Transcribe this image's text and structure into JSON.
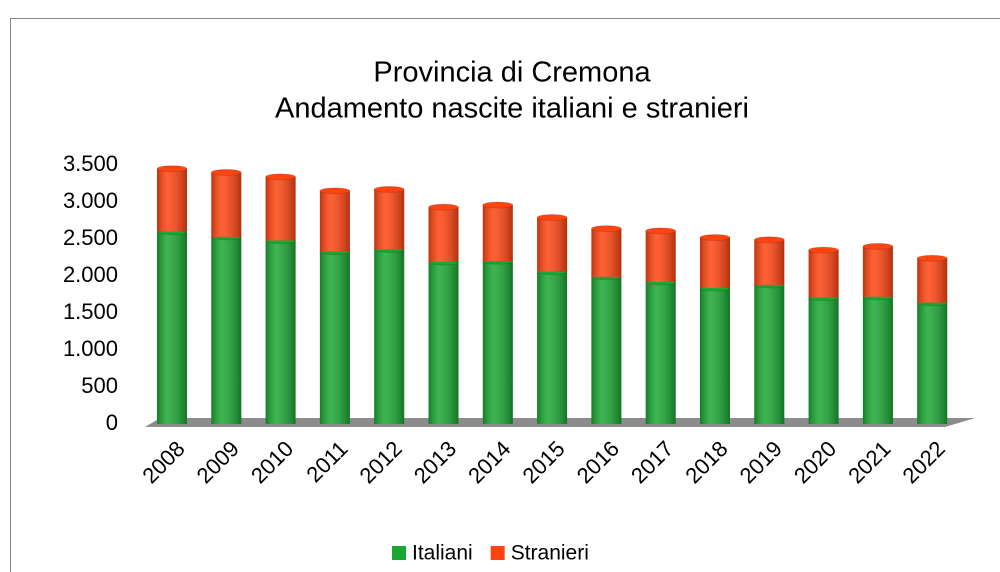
{
  "chart_data": {
    "type": "stacked_bar",
    "title": [
      "Provincia di Cremona",
      "Andamento nascite italiani e stranieri"
    ],
    "categories": [
      "2008",
      "2009",
      "2010",
      "2011",
      "2012",
      "2013",
      "2014",
      "2015",
      "2016",
      "2017",
      "2018",
      "2019",
      "2020",
      "2021",
      "2022"
    ],
    "series": [
      {
        "name": "Italiani",
        "color": "#1aa732",
        "values": [
          2600,
          2530,
          2480,
          2330,
          2360,
          2190,
          2200,
          2060,
          1990,
          1920,
          1840,
          1880,
          1710,
          1720,
          1640
        ]
      },
      {
        "name": "Stranieri",
        "color": "#ff4411",
        "values": [
          850,
          870,
          860,
          820,
          810,
          740,
          760,
          730,
          650,
          690,
          680,
          610,
          640,
          680,
          600
        ]
      }
    ],
    "ylim": [
      0,
      3500
    ],
    "yticks": [
      0,
      500,
      {
        "value": 1000,
        "label": "1.000"
      },
      {
        "value": 1500,
        "label": "1.500"
      },
      {
        "value": 2000,
        "label": "2.000"
      },
      {
        "value": 2500,
        "label": "2.500"
      },
      {
        "value": 3000,
        "label": "3.000"
      },
      {
        "value": 3500,
        "label": "3.500"
      }
    ],
    "legend": "bottom"
  }
}
